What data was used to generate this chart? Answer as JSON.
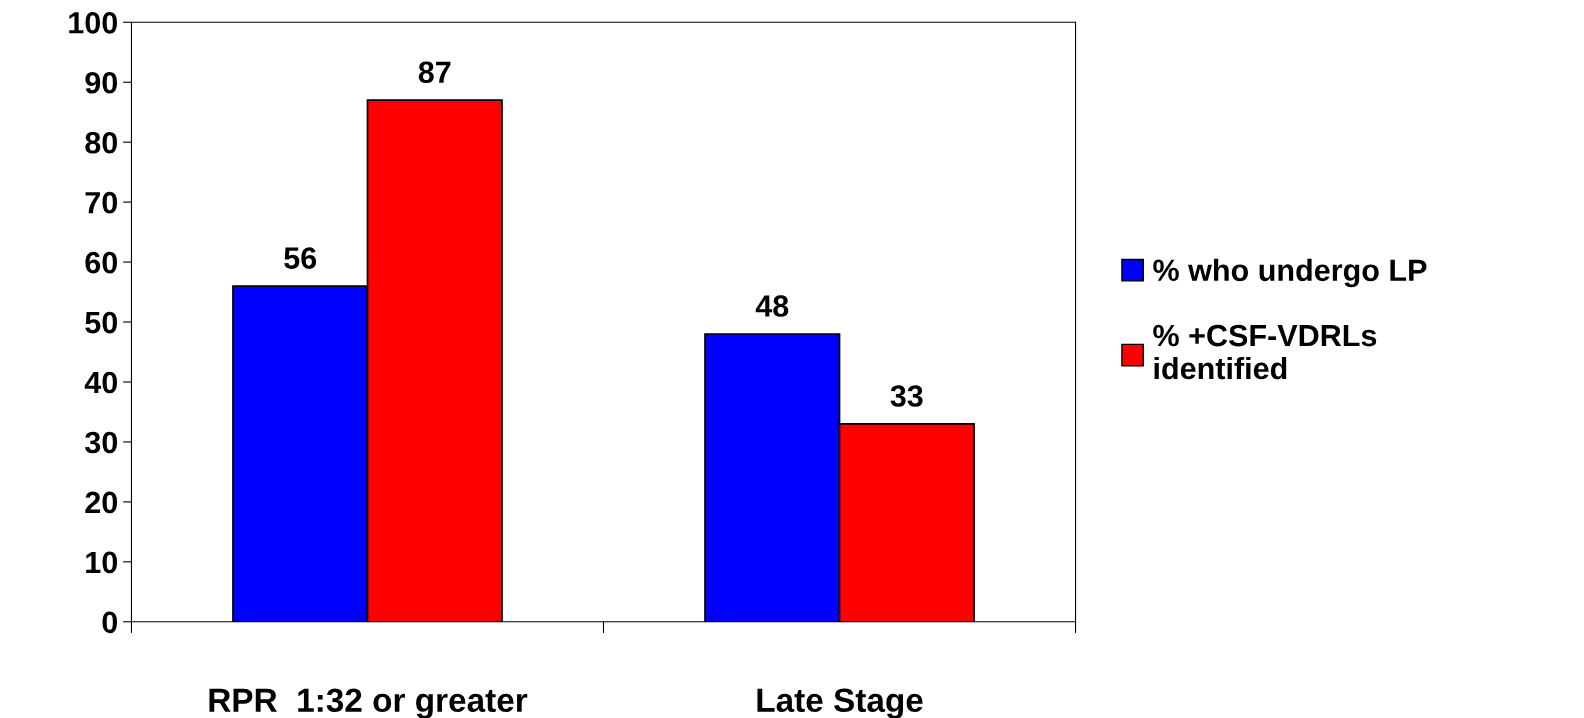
{
  "chart_data": {
    "type": "bar",
    "categories": [
      "RPR  1:32 or greater",
      "Late Stage"
    ],
    "series": [
      {
        "name": "% who undergo LP",
        "color": "#0000ff",
        "values": [
          56,
          48
        ]
      },
      {
        "name": "% +CSF-VDRLs\nidentified",
        "color": "#ff0000",
        "values": [
          87,
          33
        ]
      }
    ],
    "ylim": [
      0,
      100
    ],
    "yticks": [
      0,
      10,
      20,
      30,
      40,
      50,
      60,
      70,
      80,
      90,
      100
    ],
    "data_labels": true,
    "grid": false,
    "legend": "right"
  }
}
